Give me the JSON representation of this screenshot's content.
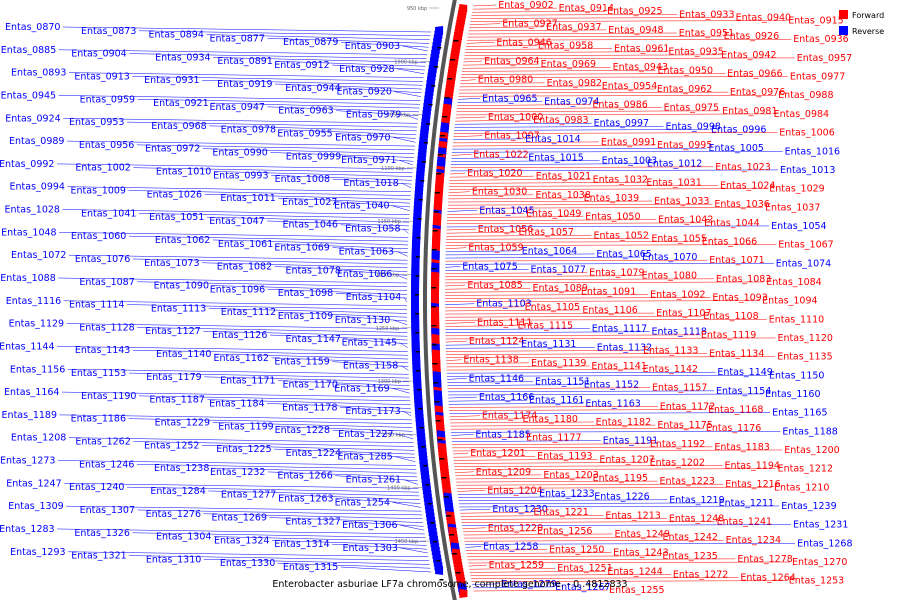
{
  "caption": "Enterobacter asburiae LF7a chromosome, complete genome. - 0..4812833",
  "legend": [
    {
      "label": "Forward",
      "color": "#ff0000"
    },
    {
      "label": "Reverse",
      "color": "#0000ff"
    }
  ],
  "ticks": [
    "950 kbp",
    "1000 kbp",
    "1050 kbp",
    "1100 kbp",
    "1150 kbp",
    "1200 kbp",
    "1250 kbp",
    "1300 kbp",
    "1350 kbp",
    "1400 kbp",
    "1450 kbp"
  ],
  "left_labels": [
    "Entas_0870",
    "Entas_0873",
    "Entas_0894",
    "Entas_0877",
    "Entas_0879",
    "Entas_0903",
    "Entas_0885",
    "Entas_0904",
    "Entas_0934",
    "Entas_0891",
    "Entas_0912",
    "Entas_0928",
    "Entas_0893",
    "Entas_0913",
    "Entas_0931",
    "Entas_0919",
    "Entas_0944",
    "Entas_0920",
    "Entas_0945",
    "Entas_0959",
    "Entas_0921",
    "Entas_0947",
    "Entas_0963",
    "Entas_0979",
    "Entas_0924",
    "Entas_0953",
    "Entas_0968",
    "Entas_0978",
    "Entas_0955",
    "Entas_0970",
    "Entas_0989",
    "Entas_0956",
    "Entas_0972",
    "Entas_0990",
    "Entas_0999",
    "Entas_0971",
    "Entas_0992",
    "Entas_1002",
    "Entas_1010",
    "Entas_0993",
    "Entas_1008",
    "Entas_1018",
    "Entas_0994",
    "Entas_1009",
    "Entas_1026",
    "Entas_1011",
    "Entas_1027",
    "Entas_1040",
    "Entas_1028",
    "Entas_1041",
    "Entas_1051",
    "Entas_1047",
    "Entas_1046",
    "Entas_1058",
    "Entas_1048",
    "Entas_1060",
    "Entas_1062",
    "Entas_1061",
    "Entas_1069",
    "Entas_1063",
    "Entas_1072",
    "Entas_1076",
    "Entas_1073",
    "Entas_1082",
    "Entas_1078",
    "Entas_1086",
    "Entas_1088",
    "Entas_1087",
    "Entas_1090",
    "Entas_1096",
    "Entas_1098",
    "Entas_1104",
    "Entas_1116",
    "Entas_1114",
    "Entas_1113",
    "Entas_1112",
    "Entas_1109",
    "Entas_1130",
    "Entas_1129",
    "Entas_1128",
    "Entas_1127",
    "Entas_1126",
    "Entas_1147",
    "Entas_1145",
    "Entas_1144",
    "Entas_1143",
    "Entas_1140",
    "Entas_1162",
    "Entas_1159",
    "Entas_1158",
    "Entas_1156",
    "Entas_1153",
    "Entas_1179",
    "Entas_1171",
    "Entas_1170",
    "Entas_1169",
    "Entas_1164",
    "Entas_1190",
    "Entas_1187",
    "Entas_1184",
    "Entas_1178",
    "Entas_1173",
    "Entas_1189",
    "Entas_1186",
    "Entas_1229",
    "Entas_1199",
    "Entas_1228",
    "Entas_1227",
    "Entas_1208",
    "Entas_1262",
    "Entas_1252",
    "Entas_1225",
    "Entas_1224",
    "Entas_1285",
    "Entas_1273",
    "Entas_1246",
    "Entas_1238",
    "Entas_1232",
    "Entas_1266",
    "Entas_1261",
    "Entas_1247",
    "Entas_1240",
    "Entas_1284",
    "Entas_1277",
    "Entas_1263",
    "Entas_1254",
    "Entas_1309",
    "Entas_1307",
    "Entas_1276",
    "Entas_1269",
    "Entas_1327",
    "Entas_1306",
    "Entas_1283",
    "Entas_1326",
    "Entas_1304",
    "Entas_1324",
    "Entas_1314",
    "Entas_1303",
    "Entas_1293",
    "Entas_1321",
    "Entas_1310",
    "Entas_1330",
    "Entas_1315"
  ],
  "right_labels": [
    "Entas_0902",
    "Entas_0914",
    "Entas_0925",
    "Entas_0933",
    "Entas_0940",
    "Entas_0915",
    "Entas_0927",
    "Entas_0937",
    "Entas_0948",
    "Entas_0951",
    "Entas_0926",
    "Entas_0936",
    "Entas_0946",
    "Entas_0958",
    "Entas_0961",
    "Entas_0935",
    "Entas_0942",
    "Entas_0957",
    "Entas_0964",
    "Entas_0969",
    "Entas_0943",
    "Entas_0950",
    "Entas_0966",
    "Entas_0977",
    "Entas_0980",
    "Entas_0982",
    "Entas_0954",
    "Entas_0962",
    "Entas_0976",
    "Entas_0988",
    "Entas_0965",
    "Entas_0974",
    "Entas_0986",
    "Entas_0975",
    "Entas_0981",
    "Entas_0984",
    "Entas_1000",
    "Entas_0983",
    "Entas_0997",
    "Entas_0998",
    "Entas_0996",
    "Entas_1006",
    "Entas_1007",
    "Entas_1014",
    "Entas_0991",
    "Entas_0995",
    "Entas_1005",
    "Entas_1016",
    "Entas_1022",
    "Entas_1015",
    "Entas_1003",
    "Entas_1012",
    "Entas_1023",
    "Entas_1013",
    "Entas_1020",
    "Entas_1021",
    "Entas_1032",
    "Entas_1031",
    "Entas_1024",
    "Entas_1029",
    "Entas_1030",
    "Entas_1038",
    "Entas_1039",
    "Entas_1033",
    "Entas_1036",
    "Entas_1037",
    "Entas_1045",
    "Entas_1049",
    "Entas_1050",
    "Entas_1042",
    "Entas_1044",
    "Entas_1054",
    "Entas_1056",
    "Entas_1057",
    "Entas_1052",
    "Entas_1055",
    "Entas_1066",
    "Entas_1067",
    "Entas_1059",
    "Entas_1064",
    "Entas_1065",
    "Entas_1070",
    "Entas_1071",
    "Entas_1074",
    "Entas_1075",
    "Entas_1077",
    "Entas_1079",
    "Entas_1080",
    "Entas_1083",
    "Entas_1084",
    "Entas_1085",
    "Entas_1089",
    "Entas_1091",
    "Entas_1092",
    "Entas_1093",
    "Entas_1094",
    "Entas_1103",
    "Entas_1105",
    "Entas_1106",
    "Entas_1107",
    "Entas_1108",
    "Entas_1110",
    "Entas_1111",
    "Entas_1115",
    "Entas_1117",
    "Entas_1118",
    "Entas_1119",
    "Entas_1120",
    "Entas_1124",
    "Entas_1131",
    "Entas_1132",
    "Entas_1133",
    "Entas_1134",
    "Entas_1135",
    "Entas_1138",
    "Entas_1139",
    "Entas_1141",
    "Entas_1142",
    "Entas_1149",
    "Entas_1150",
    "Entas_1146",
    "Entas_1151",
    "Entas_1152",
    "Entas_1157",
    "Entas_1154",
    "Entas_1160",
    "Entas_1166",
    "Entas_1161",
    "Entas_1163",
    "Entas_1172",
    "Entas_1168",
    "Entas_1165",
    "Entas_1174",
    "Entas_1180",
    "Entas_1182",
    "Entas_1175",
    "Entas_1176",
    "Entas_1188",
    "Entas_1185",
    "Entas_1177",
    "Entas_1191",
    "Entas_1192",
    "Entas_1183",
    "Entas_1200",
    "Entas_1201",
    "Entas_1193",
    "Entas_1207",
    "Entas_1202",
    "Entas_1194",
    "Entas_1212",
    "Entas_1209",
    "Entas_1203",
    "Entas_1195",
    "Entas_1223",
    "Entas_1216",
    "Entas_1210",
    "Entas_1204",
    "Entas_1233",
    "Entas_1226",
    "Entas_1219",
    "Entas_1211",
    "Entas_1239",
    "Entas_1230",
    "Entas_1221",
    "Entas_1213",
    "Entas_1248",
    "Entas_1241",
    "Entas_1231",
    "Entas_1220",
    "Entas_1256",
    "Entas_1249",
    "Entas_1242",
    "Entas_1234",
    "Entas_1268",
    "Entas_1258",
    "Entas_1250",
    "Entas_1243",
    "Entas_1235",
    "Entas_1278",
    "Entas_1270",
    "Entas_1259",
    "Entas_1251",
    "Entas_1244",
    "Entas_1272",
    "Entas_1264",
    "Entas_1253",
    "Entas_1279",
    "Entas_1267",
    "Entas_1255"
  ]
}
